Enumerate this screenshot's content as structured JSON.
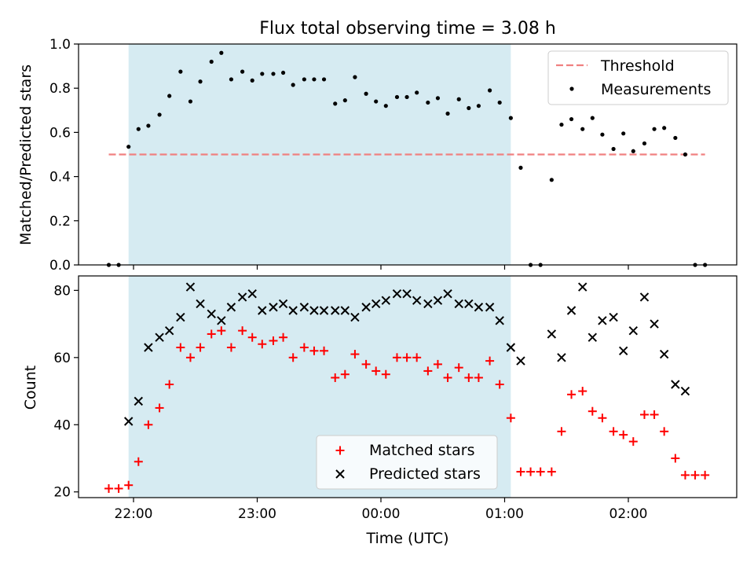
{
  "chart_data": {
    "title": "Flux total observing time = 3.08 h",
    "xlabel": "Time (UTC)",
    "x_ticks": [
      {
        "t": 0.0,
        "label": "22:00"
      },
      {
        "t": 1.0,
        "label": "23:00"
      },
      {
        "t": 2.0,
        "label": "00:00"
      },
      {
        "t": 3.0,
        "label": "01:00"
      },
      {
        "t": 4.0,
        "label": "02:00"
      }
    ],
    "shaded_interval": {
      "start": -0.04,
      "end": 3.05,
      "color": "#add8e6"
    },
    "panels": [
      {
        "type": "scatter",
        "ylabel": "Matched/Predicted stars",
        "ylim": [
          0,
          1.0
        ],
        "yticks": [
          "0.0",
          "0.2",
          "0.4",
          "0.6",
          "0.8",
          "1.0"
        ],
        "ytick_values": [
          0,
          0.2,
          0.4,
          0.6,
          0.8,
          1.0
        ],
        "legend": {
          "position": "upper right",
          "entries": [
            "Threshold",
            "Measurements"
          ]
        },
        "threshold": {
          "name": "Threshold",
          "y": 0.5,
          "x_range": [
            -0.2,
            4.62
          ],
          "color": "#f08080"
        },
        "series": [
          {
            "name": "Measurements",
            "color": "#000000",
            "points": [
              [
                -0.2,
                0.0
              ],
              [
                -0.12,
                0.0
              ],
              [
                -0.04,
                0.535
              ],
              [
                0.04,
                0.615
              ],
              [
                0.12,
                0.63
              ],
              [
                0.21,
                0.68
              ],
              [
                0.29,
                0.765
              ],
              [
                0.38,
                0.875
              ],
              [
                0.46,
                0.74
              ],
              [
                0.54,
                0.83
              ],
              [
                0.63,
                0.92
              ],
              [
                0.71,
                0.96
              ],
              [
                0.79,
                0.84
              ],
              [
                0.88,
                0.875
              ],
              [
                0.96,
                0.835
              ],
              [
                1.04,
                0.865
              ],
              [
                1.13,
                0.865
              ],
              [
                1.21,
                0.87
              ],
              [
                1.29,
                0.815
              ],
              [
                1.38,
                0.84
              ],
              [
                1.46,
                0.84
              ],
              [
                1.54,
                0.84
              ],
              [
                1.63,
                0.73
              ],
              [
                1.71,
                0.745
              ],
              [
                1.79,
                0.85
              ],
              [
                1.88,
                0.775
              ],
              [
                1.96,
                0.74
              ],
              [
                2.04,
                0.72
              ],
              [
                2.13,
                0.76
              ],
              [
                2.21,
                0.76
              ],
              [
                2.29,
                0.78
              ],
              [
                2.38,
                0.735
              ],
              [
                2.46,
                0.755
              ],
              [
                2.54,
                0.685
              ],
              [
                2.63,
                0.75
              ],
              [
                2.71,
                0.71
              ],
              [
                2.79,
                0.72
              ],
              [
                2.88,
                0.79
              ],
              [
                2.96,
                0.735
              ],
              [
                3.05,
                0.665
              ],
              [
                3.13,
                0.44
              ],
              [
                3.21,
                0.0
              ],
              [
                3.29,
                0.0
              ],
              [
                3.38,
                0.385
              ],
              [
                3.46,
                0.635
              ],
              [
                3.54,
                0.66
              ],
              [
                3.63,
                0.615
              ],
              [
                3.71,
                0.665
              ],
              [
                3.79,
                0.59
              ],
              [
                3.88,
                0.525
              ],
              [
                3.96,
                0.595
              ],
              [
                4.04,
                0.515
              ],
              [
                4.13,
                0.55
              ],
              [
                4.21,
                0.615
              ],
              [
                4.29,
                0.62
              ],
              [
                4.38,
                0.575
              ],
              [
                4.46,
                0.5
              ],
              [
                4.54,
                0.0
              ],
              [
                4.62,
                0.0
              ]
            ]
          }
        ]
      },
      {
        "type": "scatter",
        "ylabel": "Count",
        "ylim": [
          18.3,
          84.3
        ],
        "yticks": [
          "20",
          "40",
          "60",
          "80"
        ],
        "ytick_values": [
          20,
          40,
          60,
          80
        ],
        "legend": {
          "position": "lower center",
          "entries": [
            "Matched stars",
            "Predicted stars"
          ]
        },
        "series": [
          {
            "name": "Matched stars",
            "marker": "+",
            "color": "#ff0000",
            "points": [
              [
                -0.2,
                21
              ],
              [
                -0.12,
                21
              ],
              [
                -0.04,
                22
              ],
              [
                0.04,
                29
              ],
              [
                0.12,
                40
              ],
              [
                0.21,
                45
              ],
              [
                0.29,
                52
              ],
              [
                0.38,
                63
              ],
              [
                0.46,
                60
              ],
              [
                0.54,
                63
              ],
              [
                0.63,
                67
              ],
              [
                0.71,
                68
              ],
              [
                0.79,
                63
              ],
              [
                0.88,
                68
              ],
              [
                0.96,
                66
              ],
              [
                1.04,
                64
              ],
              [
                1.13,
                65
              ],
              [
                1.21,
                66
              ],
              [
                1.29,
                60
              ],
              [
                1.38,
                63
              ],
              [
                1.46,
                62
              ],
              [
                1.54,
                62
              ],
              [
                1.63,
                54
              ],
              [
                1.71,
                55
              ],
              [
                1.79,
                61
              ],
              [
                1.88,
                58
              ],
              [
                1.96,
                56
              ],
              [
                2.04,
                55
              ],
              [
                2.13,
                60
              ],
              [
                2.21,
                60
              ],
              [
                2.29,
                60
              ],
              [
                2.38,
                56
              ],
              [
                2.46,
                58
              ],
              [
                2.54,
                54
              ],
              [
                2.63,
                57
              ],
              [
                2.71,
                54
              ],
              [
                2.79,
                54
              ],
              [
                2.88,
                59
              ],
              [
                2.96,
                52
              ],
              [
                3.05,
                42
              ],
              [
                3.13,
                26
              ],
              [
                3.21,
                26
              ],
              [
                3.29,
                26
              ],
              [
                3.38,
                26
              ],
              [
                3.46,
                38
              ],
              [
                3.54,
                49
              ],
              [
                3.63,
                50
              ],
              [
                3.71,
                44
              ],
              [
                3.79,
                42
              ],
              [
                3.88,
                38
              ],
              [
                3.96,
                37
              ],
              [
                4.04,
                35
              ],
              [
                4.13,
                43
              ],
              [
                4.21,
                43
              ],
              [
                4.29,
                38
              ],
              [
                4.38,
                30
              ],
              [
                4.46,
                25
              ],
              [
                4.54,
                25
              ],
              [
                4.62,
                25
              ]
            ]
          },
          {
            "name": "Predicted stars",
            "marker": "x",
            "color": "#000000",
            "points": [
              [
                -0.04,
                41
              ],
              [
                0.04,
                47
              ],
              [
                0.12,
                63
              ],
              [
                0.21,
                66
              ],
              [
                0.29,
                68
              ],
              [
                0.38,
                72
              ],
              [
                0.46,
                81
              ],
              [
                0.54,
                76
              ],
              [
                0.63,
                73
              ],
              [
                0.71,
                71
              ],
              [
                0.79,
                75
              ],
              [
                0.88,
                78
              ],
              [
                0.96,
                79
              ],
              [
                1.04,
                74
              ],
              [
                1.13,
                75
              ],
              [
                1.21,
                76
              ],
              [
                1.29,
                74
              ],
              [
                1.38,
                75
              ],
              [
                1.46,
                74
              ],
              [
                1.54,
                74
              ],
              [
                1.63,
                74
              ],
              [
                1.71,
                74
              ],
              [
                1.79,
                72
              ],
              [
                1.88,
                75
              ],
              [
                1.96,
                76
              ],
              [
                2.04,
                77
              ],
              [
                2.13,
                79
              ],
              [
                2.21,
                79
              ],
              [
                2.29,
                77
              ],
              [
                2.38,
                76
              ],
              [
                2.46,
                77
              ],
              [
                2.54,
                79
              ],
              [
                2.63,
                76
              ],
              [
                2.71,
                76
              ],
              [
                2.79,
                75
              ],
              [
                2.88,
                75
              ],
              [
                2.96,
                71
              ],
              [
                3.05,
                63
              ],
              [
                3.13,
                59
              ],
              [
                3.38,
                67
              ],
              [
                3.46,
                60
              ],
              [
                3.54,
                74
              ],
              [
                3.63,
                81
              ],
              [
                3.71,
                66
              ],
              [
                3.79,
                71
              ],
              [
                3.88,
                72
              ],
              [
                3.96,
                62
              ],
              [
                4.04,
                68
              ],
              [
                4.13,
                78
              ],
              [
                4.21,
                70
              ],
              [
                4.29,
                61
              ],
              [
                4.38,
                52
              ],
              [
                4.46,
                50
              ]
            ]
          }
        ]
      }
    ]
  }
}
